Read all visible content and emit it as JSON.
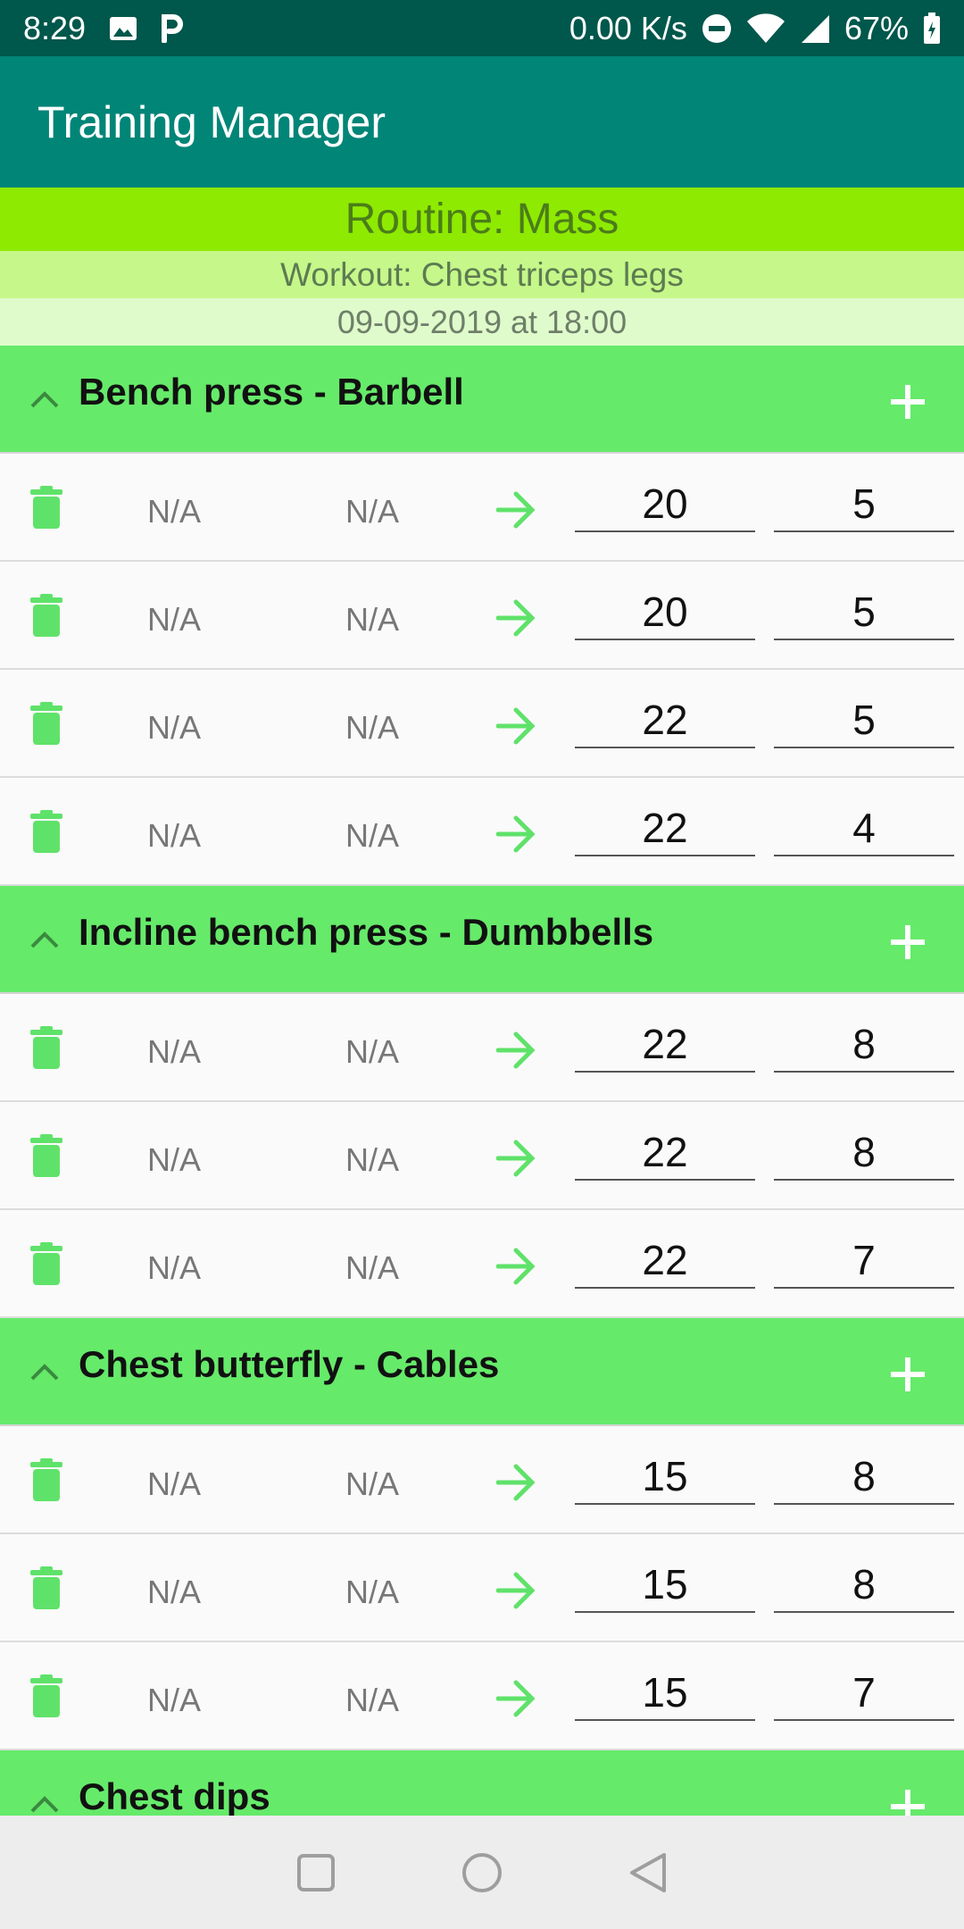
{
  "status_bar": {
    "time": "8:29",
    "speed": "0.00 K/s",
    "battery": "67%",
    "icons": [
      "image-icon",
      "p-icon",
      "dnd-icon",
      "wifi-icon",
      "signal-icon",
      "battery-icon"
    ]
  },
  "app_bar": {
    "title": "Training Manager"
  },
  "session": {
    "routine": "Routine: Mass",
    "workout": "Workout: Chest triceps legs",
    "datetime": "09-09-2019 at 18:00"
  },
  "exercises": [
    {
      "name": "Bench press - Barbell",
      "sets": [
        {
          "prev_weight": "N/A",
          "prev_reps": "N/A",
          "weight": "20",
          "reps": "5"
        },
        {
          "prev_weight": "N/A",
          "prev_reps": "N/A",
          "weight": "20",
          "reps": "5"
        },
        {
          "prev_weight": "N/A",
          "prev_reps": "N/A",
          "weight": "22",
          "reps": "5"
        },
        {
          "prev_weight": "N/A",
          "prev_reps": "N/A",
          "weight": "22",
          "reps": "4"
        }
      ]
    },
    {
      "name": "Incline bench press - Dumbbells",
      "sets": [
        {
          "prev_weight": "N/A",
          "prev_reps": "N/A",
          "weight": "22",
          "reps": "8"
        },
        {
          "prev_weight": "N/A",
          "prev_reps": "N/A",
          "weight": "22",
          "reps": "8"
        },
        {
          "prev_weight": "N/A",
          "prev_reps": "N/A",
          "weight": "22",
          "reps": "7"
        }
      ]
    },
    {
      "name": "Chest butterfly - Cables",
      "sets": [
        {
          "prev_weight": "N/A",
          "prev_reps": "N/A",
          "weight": "15",
          "reps": "8"
        },
        {
          "prev_weight": "N/A",
          "prev_reps": "N/A",
          "weight": "15",
          "reps": "8"
        },
        {
          "prev_weight": "N/A",
          "prev_reps": "N/A",
          "weight": "15",
          "reps": "7"
        }
      ]
    },
    {
      "name": "Chest dips",
      "sets": []
    }
  ],
  "colors": {
    "status_bar": "#00574b",
    "app_bar": "#008577",
    "routine_bg": "#8eea00",
    "workout_bg": "#c6f78a",
    "date_bg": "#e0fbcb",
    "exercise_header": "#66ea6a",
    "accent_green": "#5fe26a"
  }
}
